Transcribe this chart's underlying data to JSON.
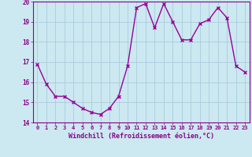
{
  "x": [
    0,
    1,
    2,
    3,
    4,
    5,
    6,
    7,
    8,
    9,
    10,
    11,
    12,
    13,
    14,
    15,
    16,
    17,
    18,
    19,
    20,
    21,
    22,
    23
  ],
  "y": [
    16.9,
    15.9,
    15.3,
    15.3,
    15.0,
    14.7,
    14.5,
    14.4,
    14.7,
    15.3,
    16.8,
    19.7,
    19.9,
    18.7,
    19.9,
    19.0,
    18.1,
    18.1,
    18.9,
    19.1,
    19.7,
    19.2,
    16.8,
    16.5
  ],
  "line_color": "#990099",
  "marker": "x",
  "marker_size": 3,
  "bg_color": "#cce8f0",
  "grid_color": "#aaccdd",
  "xlabel": "Windchill (Refroidissement éolien,°C)",
  "xlim": [
    -0.5,
    23.5
  ],
  "ylim": [
    14,
    20
  ],
  "yticks": [
    14,
    15,
    16,
    17,
    18,
    19,
    20
  ],
  "xticks": [
    0,
    1,
    2,
    3,
    4,
    5,
    6,
    7,
    8,
    9,
    10,
    11,
    12,
    13,
    14,
    15,
    16,
    17,
    18,
    19,
    20,
    21,
    22,
    23
  ],
  "tick_color": "#880088",
  "tick_fontsize": 5.0,
  "xlabel_fontsize": 6.0,
  "spine_color": "#880088",
  "linewidth": 1.0,
  "marker_linewidth": 1.0
}
